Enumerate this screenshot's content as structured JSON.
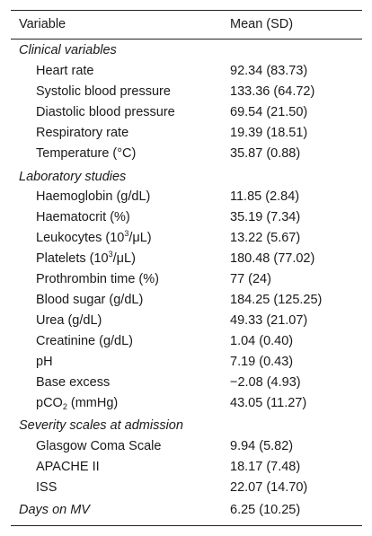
{
  "header": {
    "variable": "Variable",
    "mean_sd": "Mean (SD)"
  },
  "sections": [
    {
      "title": "Clinical variables",
      "rows": [
        {
          "label": "Heart rate",
          "value": "92.34 (83.73)"
        },
        {
          "label": "Systolic blood pressure",
          "value": "133.36 (64.72)"
        },
        {
          "label": "Diastolic blood pressure",
          "value": "69.54 (21.50)"
        },
        {
          "label": "Respiratory rate",
          "value": "19.39 (18.51)"
        },
        {
          "label": "Temperature (°C)",
          "value": "35.87 (0.88)"
        }
      ]
    },
    {
      "title": "Laboratory studies",
      "rows": [
        {
          "label": "Haemoglobin (g/dL)",
          "value": "11.85 (2.84)"
        },
        {
          "label": "Haematocrit (%)",
          "value": "35.19 (7.34)"
        },
        {
          "label_pre": "Leukocytes (10",
          "label_sup": "3",
          "label_post": "/μL)",
          "value": "13.22 (5.67)"
        },
        {
          "label_pre": "Platelets (10",
          "label_sup": "3",
          "label_post": "/μL)",
          "value": "180.48 (77.02)"
        },
        {
          "label": "Prothrombin time (%)",
          "value": "77 (24)"
        },
        {
          "label": "Blood sugar (g/dL)",
          "value": "184.25 (125.25)"
        },
        {
          "label": "Urea (g/dL)",
          "value": "49.33 (21.07)"
        },
        {
          "label": "Creatinine (g/dL)",
          "value": "1.04 (0.40)"
        },
        {
          "label": "pH",
          "value": "7.19 (0.43)"
        },
        {
          "label": "Base excess",
          "value": "−2.08 (4.93)"
        },
        {
          "label_pre": "pCO",
          "label_sub": "2",
          "label_post": " (mmHg)",
          "value": "43.05 (11.27)"
        }
      ]
    },
    {
      "title": "Severity scales at admission",
      "rows": [
        {
          "label": "Glasgow Coma Scale",
          "value": "9.94 (5.82)"
        },
        {
          "label": "APACHE II",
          "value": "18.17 (7.48)"
        },
        {
          "label": "ISS",
          "value": "22.07 (14.70)"
        }
      ]
    },
    {
      "title": "Days on MV",
      "value": "6.25 (10.25)",
      "rows": []
    }
  ]
}
